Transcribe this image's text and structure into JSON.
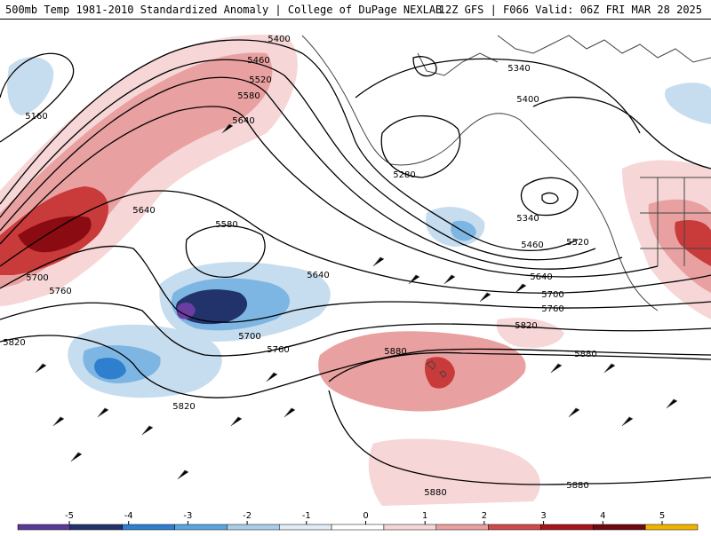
{
  "header": {
    "title_left": "500mb Temp 1981-2010 Standardized Anomaly | College of DuPage NEXLAB",
    "title_right": "12Z GFS | F066 Valid: 06Z FRI MAR 28 2025"
  },
  "colorbar": {
    "labels": [
      "-5",
      "-4",
      "-3",
      "-2",
      "-1",
      "0",
      "1",
      "2",
      "3",
      "4",
      "5"
    ],
    "colors": [
      "#5b3a97",
      "#22336b",
      "#2e7fcf",
      "#5aa6df",
      "#a9cde9",
      "#e0ecf6",
      "#ffffff",
      "#f6d6d6",
      "#e9a0a0",
      "#d04a4a",
      "#a8141c",
      "#720810",
      "#f0b400"
    ]
  },
  "contours": {
    "labels": [
      "5400",
      "5460",
      "5520",
      "5580",
      "5640",
      "5160",
      "5640",
      "5580",
      "5640",
      "5700",
      "5760",
      "5820",
      "5700",
      "5760",
      "5820",
      "5280",
      "5340",
      "5400",
      "5340",
      "5460",
      "5520",
      "5640",
      "5700",
      "5760",
      "5820",
      "5880",
      "5880",
      "5880",
      "5880"
    ]
  },
  "colors": {
    "contour": "#000000",
    "coast": "#444444",
    "warm_light": "#f6d6d6",
    "warm_mid": "#e9a0a0",
    "warm_strong": "#c93a3a",
    "warm_deep": "#8b0b12",
    "cold_light": "#c6dcef",
    "cold_mid": "#7db6e3",
    "cold_strong": "#2f7fcf",
    "cold_deep": "#22336b",
    "cold_extreme": "#6a3ea0"
  }
}
